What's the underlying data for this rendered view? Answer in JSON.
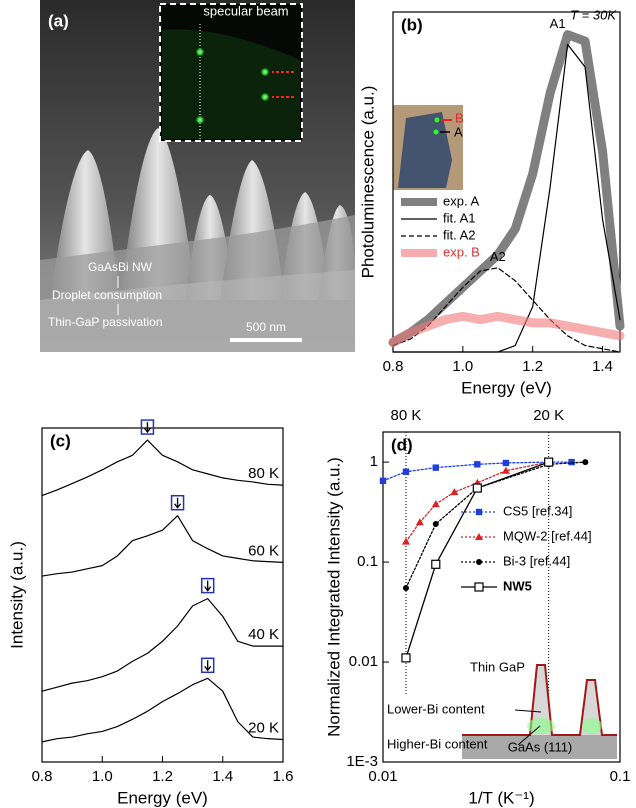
{
  "chart_data": [
    {
      "type": "image",
      "label": "(a)",
      "inset_label": "specular beam",
      "annotations": [
        "GaAsBi NW",
        "Droplet consumption",
        "Thin-GaP passivation"
      ],
      "scale_bar": "500 nm"
    },
    {
      "type": "line",
      "label": "(b)",
      "annotation": "T = 30K",
      "xlabel": "Energy (eV)",
      "ylabel": "Photoluminescence (a.u.)",
      "x": [
        0.8,
        0.85,
        0.9,
        0.95,
        1.0,
        1.05,
        1.1,
        1.15,
        1.2,
        1.25,
        1.3,
        1.35,
        1.4,
        1.45
      ],
      "xlim": [
        0.8,
        1.45
      ],
      "xticks": [
        0.8,
        {
          "value": 1.0,
          "label": "1.0"
        },
        1.2,
        1.4
      ],
      "ylim": [
        0,
        1.05
      ],
      "legend": "left",
      "series": [
        {
          "name": "exp. A",
          "color": "#808080",
          "width": 9,
          "values": [
            0.03,
            0.06,
            0.1,
            0.15,
            0.2,
            0.25,
            0.3,
            0.38,
            0.55,
            0.8,
            0.98,
            0.96,
            0.62,
            0.08
          ]
        },
        {
          "name": "fit. A1",
          "color": "#000000",
          "width": 1.2,
          "values": [
            0,
            0,
            0,
            0,
            0,
            0,
            0,
            0.02,
            0.14,
            0.51,
            0.95,
            0.88,
            0.41,
            0.1
          ]
        },
        {
          "name": "fit. A2",
          "color": "#000000",
          "width": 1.2,
          "dash": "dashed",
          "values": [
            0.02,
            0.04,
            0.08,
            0.14,
            0.2,
            0.25,
            0.26,
            0.22,
            0.16,
            0.1,
            0.05,
            0.02,
            0.01,
            0
          ]
        },
        {
          "name": "exp. B",
          "color": "#f07878",
          "width": 9,
          "opacity": 0.6,
          "values": [
            0.03,
            0.06,
            0.08,
            0.1,
            0.11,
            0.1,
            0.11,
            0.1,
            0.09,
            0.09,
            0.08,
            0.07,
            0.06,
            0.05
          ]
        }
      ],
      "peak_labels": [
        "A1",
        "A2"
      ],
      "inset_labels": [
        "A",
        "B"
      ]
    },
    {
      "type": "line",
      "label": "(c)",
      "xlabel": "Energy (eV)",
      "ylabel": "Intensity (a.u.)",
      "x": [
        0.8,
        0.85,
        0.9,
        0.95,
        1.0,
        1.05,
        1.1,
        1.15,
        1.2,
        1.25,
        1.3,
        1.35,
        1.4,
        1.45,
        1.5,
        1.55,
        1.6
      ],
      "xlim": [
        0.8,
        1.6
      ],
      "xticks": [
        0.8,
        {
          "value": 1.0,
          "label": "1.0"
        },
        1.2,
        1.4,
        1.6
      ],
      "ylim": [
        0,
        4.15
      ],
      "highlight_peaks": true,
      "series": [
        {
          "name": "80 K",
          "color": "#000000",
          "width": 1.2,
          "values": [
            3.31,
            3.38,
            3.46,
            3.54,
            3.63,
            3.73,
            3.81,
            4.0,
            3.81,
            3.73,
            3.63,
            3.58,
            3.53,
            3.5,
            3.48,
            3.45,
            3.44
          ]
        },
        {
          "name": "60 K",
          "color": "#000000",
          "width": 1.2,
          "values": [
            2.31,
            2.34,
            2.36,
            2.4,
            2.44,
            2.56,
            2.75,
            2.81,
            2.88,
            3.06,
            2.75,
            2.65,
            2.56,
            2.53,
            2.5,
            2.49,
            2.48
          ]
        },
        {
          "name": "40 K",
          "color": "#000000",
          "width": 1.2,
          "values": [
            0.88,
            0.93,
            0.98,
            1.01,
            1.06,
            1.13,
            1.25,
            1.35,
            1.5,
            1.69,
            1.94,
            2.03,
            1.81,
            1.5,
            1.44,
            1.44,
            1.44
          ]
        },
        {
          "name": "20 K",
          "color": "#000000",
          "width": 1.2,
          "values": [
            0.25,
            0.29,
            0.31,
            0.35,
            0.38,
            0.44,
            0.53,
            0.63,
            0.75,
            0.85,
            0.96,
            1.04,
            0.88,
            0.5,
            0.31,
            0.29,
            0.28
          ]
        }
      ]
    },
    {
      "type": "line",
      "label": "(d)",
      "xlabel": "1/T (K⁻¹)",
      "ylabel": "Normalized Integrated Intensity (a.u.)",
      "xlog": true,
      "ylog": true,
      "xlim": [
        0.01,
        0.1
      ],
      "xticks": [
        0.01,
        0.1
      ],
      "x2ticks": [
        {
          "value": 0.0125,
          "label": "80 K"
        },
        {
          "value": 0.05,
          "label": "20 K"
        }
      ],
      "ylim": [
        0.001,
        2
      ],
      "yticks": [
        {
          "value": 0.001,
          "label": "1E-3"
        },
        0.01,
        0.1,
        1
      ],
      "legend": "right",
      "series": [
        {
          "name": "CS5 [ref.34]",
          "color": "#1f3fdd",
          "width": 1.3,
          "dash": "dotted",
          "marker": "square",
          "x": [
            0.01,
            0.0125,
            0.0167,
            0.025,
            0.033,
            0.05,
            0.0625
          ],
          "values": [
            0.65,
            0.8,
            0.88,
            0.95,
            0.98,
            1.0,
            1.0
          ]
        },
        {
          "name": "MQW-2 [ref.44]",
          "color": "#dd2020",
          "width": 1.3,
          "dash": "dotted",
          "marker": "triangle",
          "x": [
            0.0125,
            0.0143,
            0.0167,
            0.02,
            0.025,
            0.033,
            0.05
          ],
          "values": [
            0.16,
            0.25,
            0.38,
            0.5,
            0.62,
            0.82,
            1.0
          ]
        },
        {
          "name": "Bi-3 [ref.44]",
          "color": "#000000",
          "width": 1.3,
          "dash": "dotted",
          "marker": "circle",
          "x": [
            0.0125,
            0.0167,
            0.025,
            0.05,
            0.0714
          ],
          "values": [
            0.055,
            0.24,
            0.55,
            0.95,
            1.0
          ]
        },
        {
          "name": "NW5",
          "color": "#000000",
          "width": 1.3,
          "marker": "open-square",
          "bold": true,
          "x": [
            0.0125,
            0.0167,
            0.025,
            0.05
          ],
          "values": [
            0.011,
            0.095,
            0.55,
            1.0
          ]
        }
      ],
      "inset_labels": [
        "Thin GaP",
        "Lower-Bi content",
        "Higher-Bi content",
        "GaAs (111)"
      ]
    }
  ]
}
